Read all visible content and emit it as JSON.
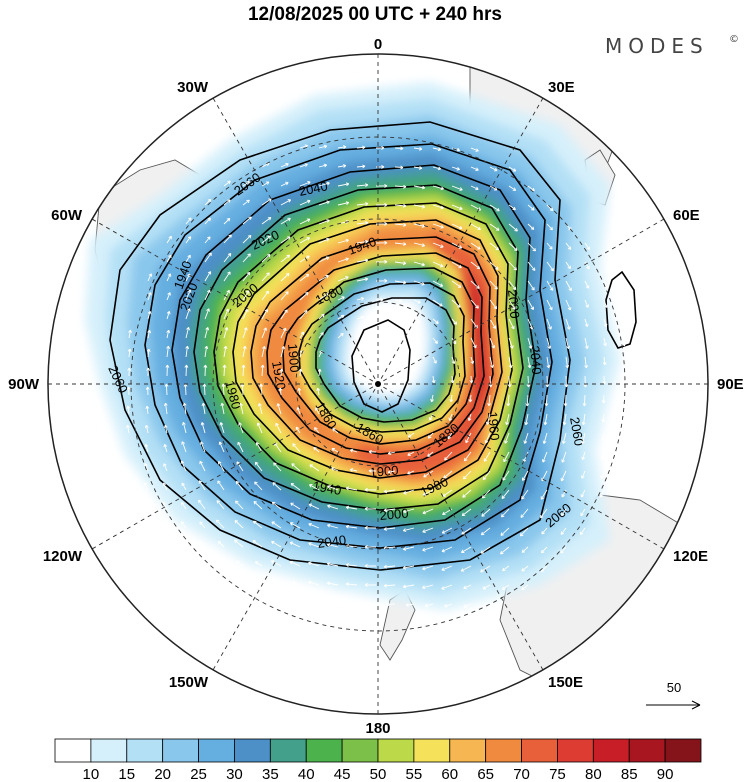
{
  "title": "12/08/2025  00 UTC  + 240 hrs",
  "brand": "MODES",
  "brand_mark": "©",
  "longitude_labels": {
    "n": "0",
    "ne30": "30E",
    "e60": "60E",
    "e90": "90E",
    "e120": "120E",
    "e150": "150E",
    "s": "180",
    "w150": "150W",
    "w120": "120W",
    "w90": "90W",
    "w60": "60W",
    "w30": "30W"
  },
  "contour_labels": [
    "2060",
    "2040",
    "2020",
    "1940",
    "1880",
    "1920",
    "1900",
    "1860",
    "1940",
    "2000",
    "2020",
    "2040",
    "2060",
    "2040",
    "2060",
    "2000",
    "1980",
    "1960",
    "1900",
    "1880",
    "1860",
    "1940",
    "1980",
    "2020",
    "2060"
  ],
  "vector_reference": {
    "label": "50"
  },
  "colorbar": {
    "colors": [
      "#ffffff",
      "#d6f0fb",
      "#b4e0f6",
      "#8ac7ec",
      "#65aee0",
      "#4d8fc7",
      "#43a08a",
      "#4cb34c",
      "#7cc04a",
      "#bcd94a",
      "#f5e25a",
      "#f6b651",
      "#f08a3f",
      "#e8603a",
      "#dc3c32",
      "#c81e28",
      "#a8171f",
      "#85141a"
    ],
    "ticks": [
      "10",
      "15",
      "20",
      "25",
      "30",
      "35",
      "40",
      "45",
      "50",
      "55",
      "60",
      "65",
      "70",
      "75",
      "80",
      "85",
      "90"
    ]
  },
  "colors": {
    "land": "#f0f0f0",
    "coast": "#555555",
    "grid": "#333333",
    "contour": "#000000",
    "vector": "#ffffff"
  }
}
